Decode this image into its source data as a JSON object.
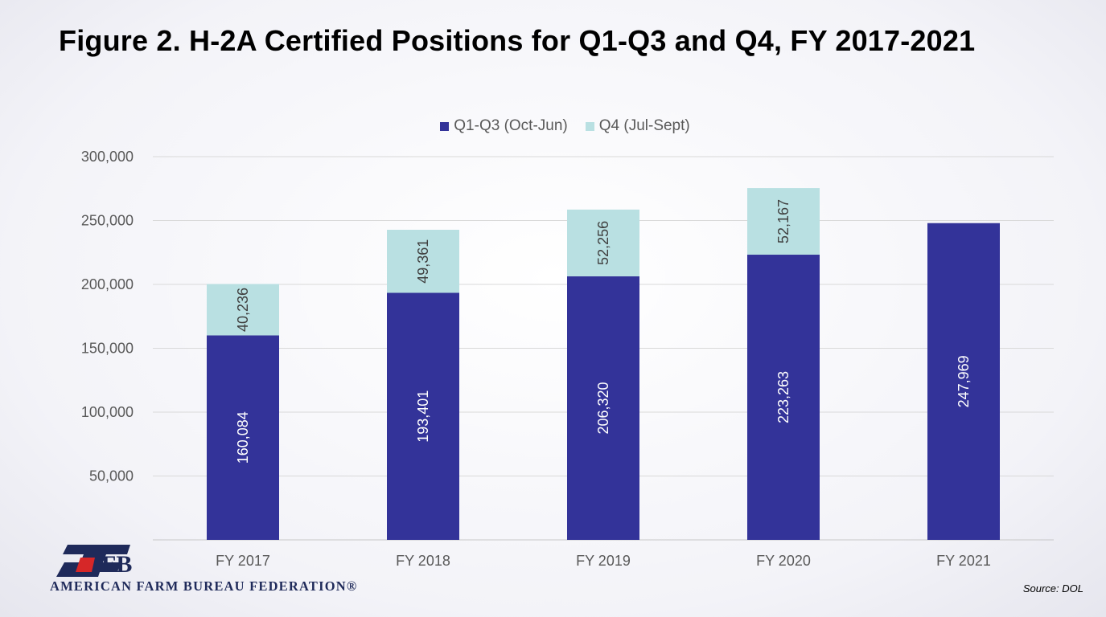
{
  "slide": {
    "source": "Source: DOL",
    "org_name": "AMERICAN FARM BUREAU FEDERATION®",
    "logo_letters": "FB"
  },
  "chart_data": {
    "type": "bar",
    "stacked": true,
    "title": "Figure 2. H-2A Certified Positions for Q1-Q3 and Q4, FY 2017-2021",
    "categories": [
      "FY 2017",
      "FY 2018",
      "FY 2019",
      "FY 2020",
      "FY 2021"
    ],
    "series": [
      {
        "name": "Q1-Q3 (Oct-Jun)",
        "color": "#333399",
        "values": [
          160084,
          193401,
          206320,
          223263,
          247969
        ]
      },
      {
        "name": "Q4 (Jul-Sept)",
        "color": "#b9e0e2",
        "values": [
          40236,
          49361,
          52256,
          52167,
          null
        ]
      }
    ],
    "data_labels": {
      "Q1-Q3 (Oct-Jun)": [
        "160,084",
        "193,401",
        "206,320",
        "223,263",
        "247,969"
      ],
      "Q4 (Jul-Sept)": [
        "40,236",
        "49,361",
        "52,256",
        "52,167",
        ""
      ]
    },
    "ylim": [
      0,
      300000
    ],
    "yticks": [
      0,
      50000,
      100000,
      150000,
      200000,
      250000,
      300000
    ],
    "ytick_labels": [
      "",
      "50,000",
      "100,000",
      "150,000",
      "200,000",
      "250,000",
      "300,000"
    ],
    "xlabel": "",
    "ylabel": "",
    "grid": true,
    "legend_position": "top"
  }
}
